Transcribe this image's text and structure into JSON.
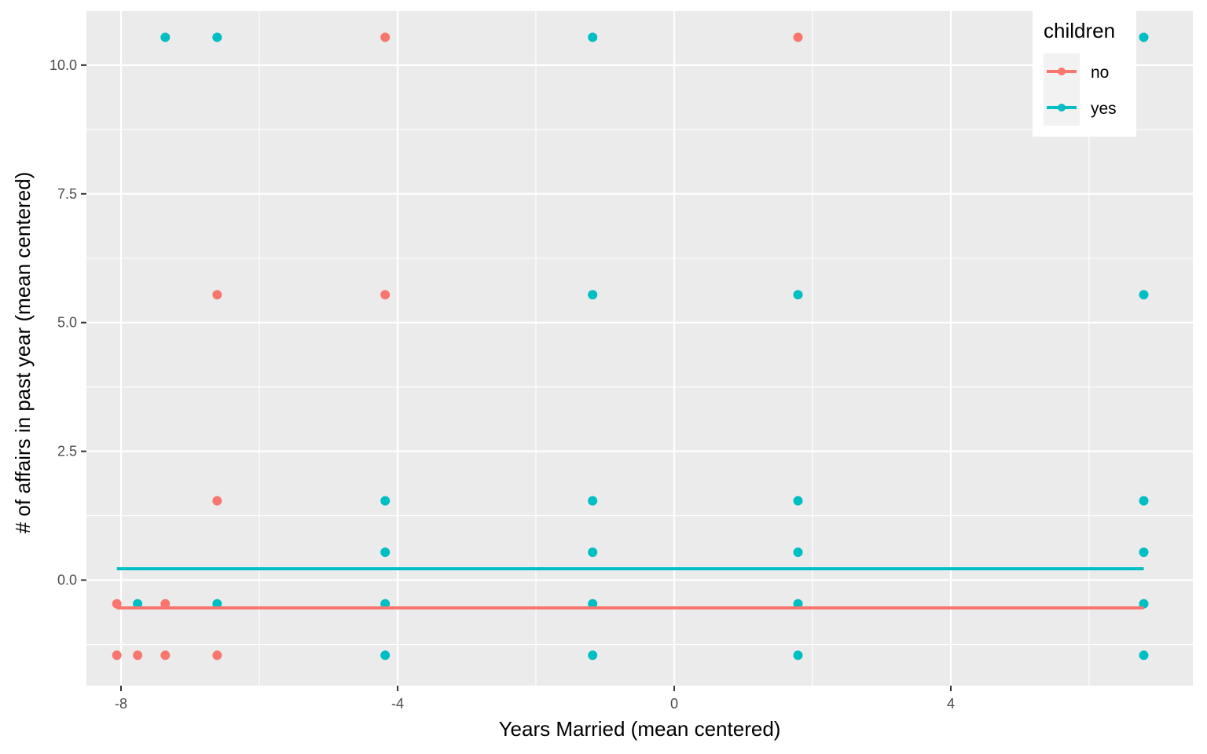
{
  "chart_data": {
    "type": "scatter",
    "xlabel": "Years Married (mean centered)",
    "ylabel": "# of affairs in past year (mean centered)",
    "xlim": [
      -8.5,
      7.5
    ],
    "ylim": [
      -2.05,
      11.05
    ],
    "xticks": [
      -8,
      -4,
      0,
      4
    ],
    "xtick_labels": [
      "-8",
      "-4",
      "0",
      "4"
    ],
    "yticks": [
      0,
      2.5,
      5,
      7.5,
      10
    ],
    "ytick_labels": [
      "0.0",
      "2.5",
      "5.0",
      "7.5",
      "10.0"
    ],
    "grid": true,
    "legend": {
      "title": "children",
      "placement": "top-right",
      "entries": [
        {
          "label": "no",
          "color": "#F8766D"
        },
        {
          "label": "yes",
          "color": "#00BFC4"
        }
      ]
    },
    "series": [
      {
        "name": "no",
        "color": "#F8766D",
        "points": [
          [
            -8.06,
            -0.46
          ],
          [
            -8.06,
            -1.46
          ],
          [
            -7.76,
            -1.46
          ],
          [
            -7.36,
            -0.46
          ],
          [
            -7.36,
            -1.46
          ],
          [
            -6.61,
            5.54
          ],
          [
            -6.61,
            1.54
          ],
          [
            -6.61,
            -1.46
          ],
          [
            -4.18,
            10.54
          ],
          [
            -4.18,
            5.54
          ],
          [
            1.79,
            10.54
          ]
        ],
        "fit_line": [
          [
            -8.06,
            -0.54
          ],
          [
            6.79,
            -0.54
          ]
        ]
      },
      {
        "name": "yes",
        "color": "#00BFC4",
        "points": [
          [
            -7.76,
            -0.46
          ],
          [
            -7.36,
            10.54
          ],
          [
            -6.61,
            10.54
          ],
          [
            -6.61,
            -0.46
          ],
          [
            -4.18,
            1.54
          ],
          [
            -4.18,
            0.54
          ],
          [
            -4.18,
            -0.46
          ],
          [
            -4.18,
            -1.46
          ],
          [
            -1.18,
            10.54
          ],
          [
            -1.18,
            5.54
          ],
          [
            -1.18,
            1.54
          ],
          [
            -1.18,
            0.54
          ],
          [
            -1.18,
            -0.46
          ],
          [
            -1.18,
            -1.46
          ],
          [
            1.79,
            5.54
          ],
          [
            1.79,
            1.54
          ],
          [
            1.79,
            0.54
          ],
          [
            1.79,
            -0.46
          ],
          [
            1.79,
            -1.46
          ],
          [
            6.79,
            10.54
          ],
          [
            6.79,
            5.54
          ],
          [
            6.79,
            1.54
          ],
          [
            6.79,
            0.54
          ],
          [
            6.79,
            -0.46
          ],
          [
            6.79,
            -1.46
          ]
        ],
        "fit_line": [
          [
            -8.06,
            0.22
          ],
          [
            6.79,
            0.22
          ]
        ]
      }
    ]
  }
}
